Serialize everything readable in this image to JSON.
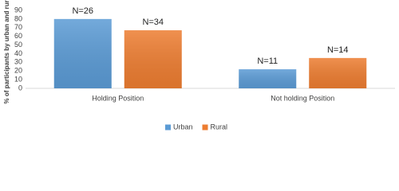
{
  "chart_data": {
    "type": "bar",
    "y_label": "% of participants by urban and rural",
    "categories": [
      "Holding Position",
      "Not holding Position"
    ],
    "series": [
      {
        "name": "Urban",
        "color": "#5b9bd5",
        "values": [
          80,
          22
        ],
        "annotations": [
          "N=26",
          "N=11"
        ]
      },
      {
        "name": "Rural",
        "color": "#ed7d31",
        "values": [
          67,
          35
        ],
        "annotations": [
          "N=34",
          "N=14"
        ]
      }
    ],
    "ylim": [
      0,
      90
    ],
    "yticks": [
      0,
      10,
      20,
      30,
      40,
      50,
      60,
      70,
      80,
      90
    ],
    "grid": false,
    "legend": "bottom"
  }
}
